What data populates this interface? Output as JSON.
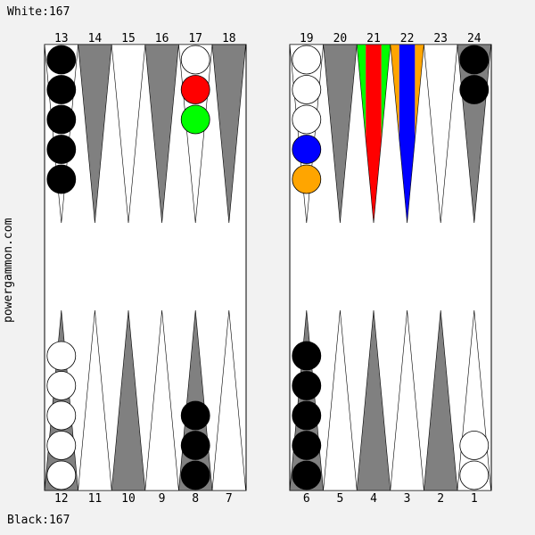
{
  "header": {
    "white_score": "White:167"
  },
  "footer": {
    "black_score": "Black:167"
  },
  "side_label": "powergammon.com",
  "colors": {
    "board_bg": "#ffffff",
    "dark_point": "#808080",
    "light_point": "#ffffff",
    "black_checker": "#000000",
    "white_checker": "#ffffff",
    "red": "#ff0000",
    "green": "#00ff00",
    "blue": "#0000ff",
    "orange": "#ffa500"
  },
  "points": [
    {
      "n": 1,
      "label": "1",
      "stack": [
        "white",
        "white"
      ]
    },
    {
      "n": 2,
      "label": "2",
      "stack": []
    },
    {
      "n": 3,
      "label": "3",
      "stack": []
    },
    {
      "n": 4,
      "label": "4",
      "stack": []
    },
    {
      "n": 5,
      "label": "5",
      "stack": []
    },
    {
      "n": 6,
      "label": "6",
      "stack": [
        "black",
        "black",
        "black",
        "black",
        "black"
      ]
    },
    {
      "n": 7,
      "label": "7",
      "stack": []
    },
    {
      "n": 8,
      "label": "8",
      "stack": [
        "black",
        "black",
        "black"
      ]
    },
    {
      "n": 9,
      "label": "9",
      "stack": []
    },
    {
      "n": 10,
      "label": "10",
      "stack": []
    },
    {
      "n": 11,
      "label": "11",
      "stack": []
    },
    {
      "n": 12,
      "label": "12",
      "stack": [
        "white",
        "white",
        "white",
        "white",
        "white"
      ]
    },
    {
      "n": 13,
      "label": "13",
      "stack": [
        "black",
        "black",
        "black",
        "black",
        "black"
      ]
    },
    {
      "n": 14,
      "label": "14",
      "stack": []
    },
    {
      "n": 15,
      "label": "15",
      "stack": []
    },
    {
      "n": 16,
      "label": "16",
      "stack": []
    },
    {
      "n": 17,
      "label": "17",
      "stack": [
        "white",
        "red",
        "green"
      ]
    },
    {
      "n": 18,
      "label": "18",
      "stack": []
    },
    {
      "n": 19,
      "label": "19",
      "stack": [
        "white",
        "white",
        "white",
        "blue",
        "orange"
      ]
    },
    {
      "n": 20,
      "label": "20",
      "stack": []
    },
    {
      "n": 21,
      "label": "21",
      "stack": [],
      "stripes": [
        "green",
        "red",
        "green"
      ]
    },
    {
      "n": 22,
      "label": "22",
      "stack": [],
      "stripes": [
        "orange",
        "blue",
        "orange"
      ]
    },
    {
      "n": 23,
      "label": "23",
      "stack": []
    },
    {
      "n": 24,
      "label": "24",
      "stack": [
        "black",
        "black"
      ]
    }
  ]
}
